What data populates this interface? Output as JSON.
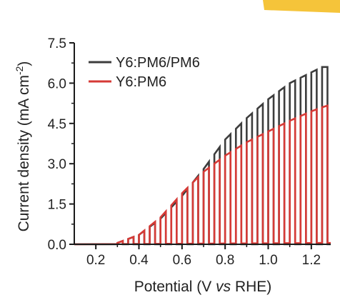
{
  "colors": {
    "corner_accent": "#f5c43a",
    "axis": "#1a1a1a"
  },
  "chart_data": {
    "type": "line",
    "subtype": "chopped-light linear sweep voltammetry",
    "xlabel_pre": "Potential (V ",
    "xlabel_italic": "vs",
    "xlabel_post": " RHE)",
    "ylabel": "Current density (mA cm",
    "ylabel_sup": "-2",
    "ylabel_close": ")",
    "xlim": [
      0.1,
      1.29
    ],
    "ylim": [
      0,
      7.5
    ],
    "xticks": [
      0.2,
      0.4,
      0.6,
      0.8,
      1.0,
      1.2
    ],
    "xtick_labels": [
      "0.2",
      "0.4",
      "0.6",
      "0.8",
      "1.0",
      "1.2"
    ],
    "yticks": [
      0,
      1.5,
      3.0,
      4.5,
      6.0,
      7.5
    ],
    "ytick_labels": [
      "0.0",
      "1.5",
      "3.0",
      "4.5",
      "6.0",
      "7.5"
    ],
    "legend_position": "top-left",
    "chop": {
      "x_start": 0.3,
      "x_end": 1.29,
      "period": 0.05,
      "light_on_fraction": 0.5
    },
    "series": [
      {
        "name": "Y6:PM6/PM6",
        "color": "#3d3d3d",
        "light_envelope": {
          "x": [
            0.1,
            0.3,
            0.4,
            0.5,
            0.6,
            0.7,
            0.8,
            0.9,
            1.0,
            1.1,
            1.2,
            1.25,
            1.29
          ],
          "y": [
            0.0,
            0.05,
            0.35,
            0.95,
            1.8,
            2.8,
            3.9,
            4.7,
            5.4,
            6.0,
            6.4,
            6.6,
            6.6
          ]
        },
        "dark_current": {
          "x": [
            0.1,
            1.29
          ],
          "y": [
            0.0,
            0.0
          ]
        }
      },
      {
        "name": "Y6:PM6",
        "color": "#d63a36",
        "light_envelope": {
          "x": [
            0.1,
            0.3,
            0.4,
            0.5,
            0.6,
            0.7,
            0.8,
            0.9,
            1.0,
            1.1,
            1.2,
            1.25,
            1.29
          ],
          "y": [
            0.0,
            0.05,
            0.35,
            1.0,
            1.9,
            2.7,
            3.3,
            3.8,
            4.2,
            4.6,
            4.95,
            5.1,
            5.2
          ]
        },
        "dark_current": {
          "x": [
            0.1,
            1.29
          ],
          "y": [
            0.0,
            0.05
          ]
        }
      }
    ]
  }
}
